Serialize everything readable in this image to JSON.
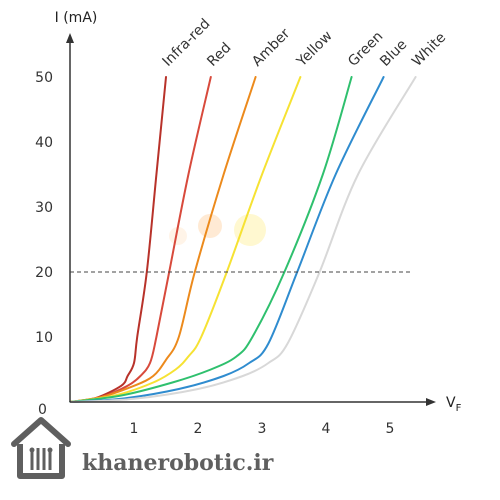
{
  "chart_data": {
    "type": "line",
    "title": "",
    "ylabel": "I (mA)",
    "xlabel": "V",
    "xlabel_subscript": "F",
    "xlim": [
      0,
      5.4
    ],
    "ylim": [
      0,
      50
    ],
    "x_ticks": [
      "1",
      "2",
      "3",
      "4",
      "5"
    ],
    "y_ticks": [
      "10",
      "20",
      "30",
      "40",
      "50"
    ],
    "origin_label": "0",
    "grid": false,
    "reference_line": {
      "y": 20,
      "style": "dashed"
    },
    "series": [
      {
        "name": "Infra-red",
        "color": "#b8322a",
        "points": [
          [
            0,
            0
          ],
          [
            0.4,
            0.6
          ],
          [
            0.8,
            2.5
          ],
          [
            0.9,
            4
          ],
          [
            1.0,
            6
          ],
          [
            1.05,
            10
          ],
          [
            1.2,
            20
          ],
          [
            1.35,
            35
          ],
          [
            1.5,
            50
          ]
        ]
      },
      {
        "name": "Red",
        "color": "#d84a3c",
        "points": [
          [
            0,
            0
          ],
          [
            0.5,
            0.8
          ],
          [
            0.9,
            2.5
          ],
          [
            1.1,
            4
          ],
          [
            1.25,
            6
          ],
          [
            1.35,
            10
          ],
          [
            1.55,
            20
          ],
          [
            1.85,
            35
          ],
          [
            2.2,
            50
          ]
        ]
      },
      {
        "name": "Amber",
        "color": "#ec8a1c",
        "points": [
          [
            0,
            0
          ],
          [
            0.5,
            0.8
          ],
          [
            1.0,
            2.5
          ],
          [
            1.3,
            4
          ],
          [
            1.5,
            6.5
          ],
          [
            1.7,
            10
          ],
          [
            1.95,
            20
          ],
          [
            2.4,
            35
          ],
          [
            2.9,
            50
          ]
        ]
      },
      {
        "name": "Yellow",
        "color": "#f6e233",
        "points": [
          [
            0,
            0
          ],
          [
            0.7,
            1
          ],
          [
            1.3,
            3
          ],
          [
            1.65,
            5
          ],
          [
            1.85,
            7
          ],
          [
            2.05,
            10
          ],
          [
            2.45,
            20
          ],
          [
            3.0,
            35
          ],
          [
            3.6,
            50
          ]
        ]
      },
      {
        "name": "Green",
        "color": "#2fc06e",
        "points": [
          [
            0,
            0
          ],
          [
            0.8,
            1
          ],
          [
            1.6,
            3
          ],
          [
            2.2,
            5
          ],
          [
            2.6,
            7
          ],
          [
            2.85,
            10
          ],
          [
            3.35,
            20
          ],
          [
            3.95,
            35
          ],
          [
            4.4,
            50
          ]
        ]
      },
      {
        "name": "Blue",
        "color": "#2f8ccf",
        "points": [
          [
            0,
            0
          ],
          [
            0.8,
            0.5
          ],
          [
            1.7,
            2
          ],
          [
            2.4,
            4
          ],
          [
            2.8,
            6
          ],
          [
            3.1,
            9
          ],
          [
            3.55,
            20
          ],
          [
            4.15,
            35
          ],
          [
            4.9,
            50
          ]
        ]
      },
      {
        "name": "White",
        "color": "#d8d8d8",
        "points": [
          [
            0,
            0
          ],
          [
            1.0,
            0.5
          ],
          [
            2.0,
            2
          ],
          [
            2.7,
            4
          ],
          [
            3.1,
            6
          ],
          [
            3.4,
            9
          ],
          [
            3.9,
            20
          ],
          [
            4.5,
            35
          ],
          [
            5.4,
            50
          ]
        ]
      }
    ]
  },
  "watermark": {
    "text": "khanerobotic.ir",
    "icon": "house-circuit-logo-icon",
    "color": "#5f5f5f"
  }
}
